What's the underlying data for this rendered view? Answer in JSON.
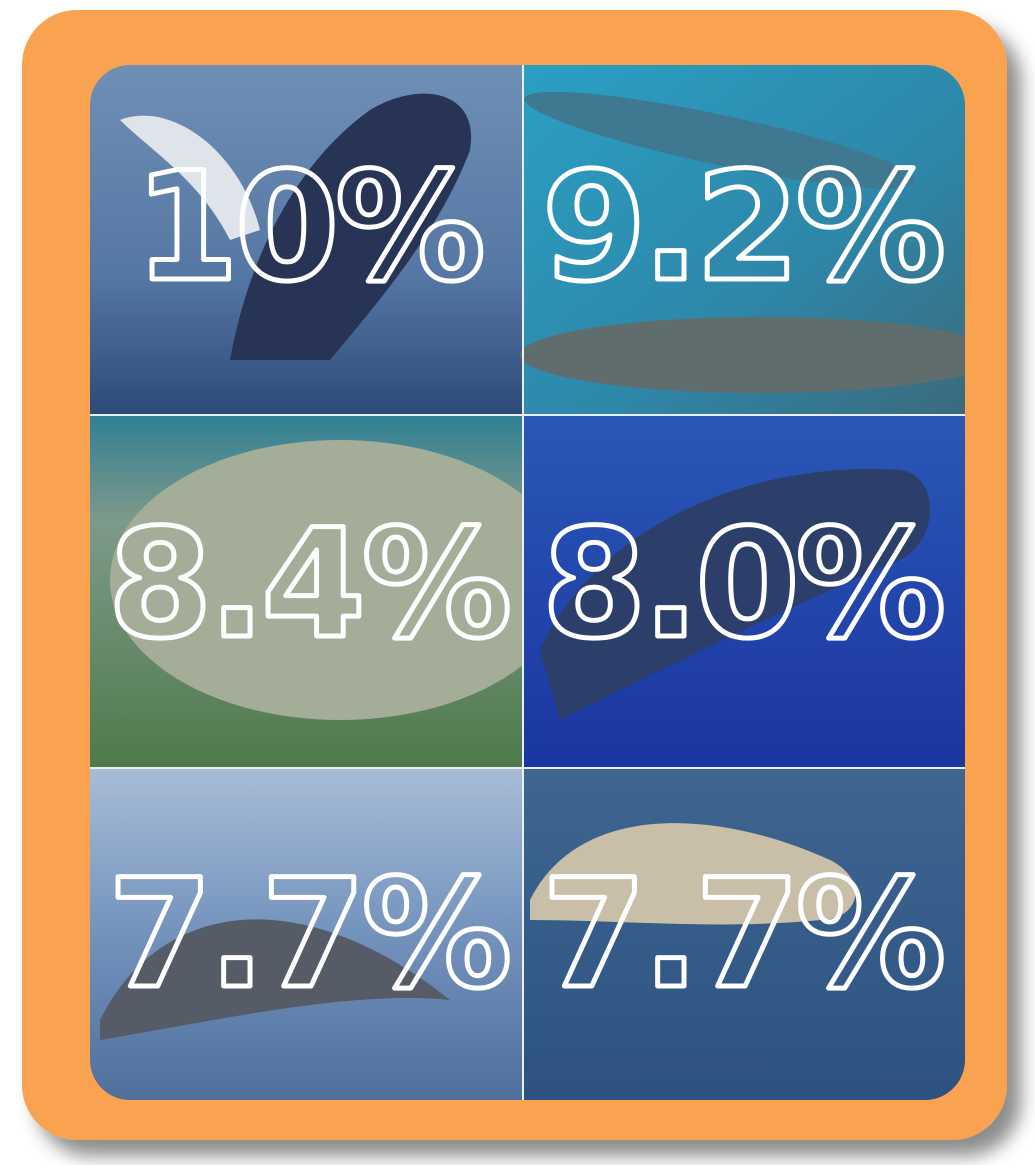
{
  "tiles": [
    {
      "label": "10%"
    },
    {
      "label": "9.2%"
    },
    {
      "label": "8.4%"
    },
    {
      "label": "8.0%"
    },
    {
      "label": "7.7%"
    },
    {
      "label": "7.7%"
    }
  ]
}
